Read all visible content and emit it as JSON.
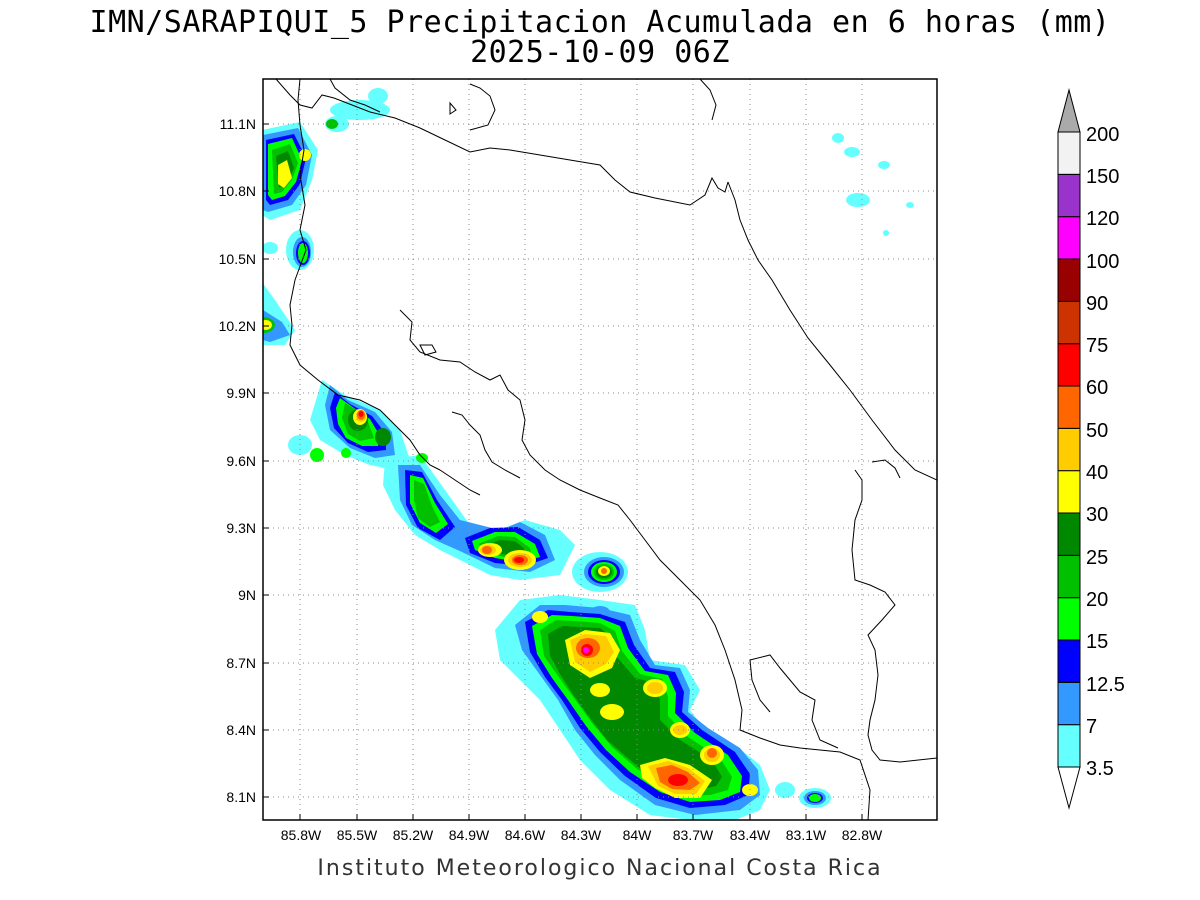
{
  "title": {
    "line1": "IMN/SARAPIQUI_5 Precipitacion Acumulada en 6 horas (mm)",
    "line2": "2025-10-09 06Z"
  },
  "map": {
    "lat_labels": [
      "11.1N",
      "10.8N",
      "10.5N",
      "10.2N",
      "9.9N",
      "9.6N",
      "9.3N",
      "9N",
      "8.7N",
      "8.4N",
      "8.1N"
    ],
    "lon_labels": [
      "85.8W",
      "85.5W",
      "85.2W",
      "84.9W",
      "84.6W",
      "84.3W",
      "84W",
      "83.7W",
      "83.4W",
      "83.1W",
      "82.8W"
    ]
  },
  "colorbar": {
    "labels": [
      "3.5",
      "7",
      "12.5",
      "15",
      "20",
      "25",
      "30",
      "40",
      "50",
      "60",
      "75",
      "90",
      "100",
      "120",
      "150",
      "200"
    ],
    "colors": [
      "#66ffff",
      "#3399ff",
      "#0000ff",
      "#00ff00",
      "#00c000",
      "#008800",
      "#ffff00",
      "#ffcc00",
      "#ff6600",
      "#ff0000",
      "#cc3300",
      "#990000",
      "#ff00ff",
      "#9933cc",
      "#f2f2f2",
      "#aaaaaa"
    ]
  },
  "footer": "Instituto Meteorologico Nacional Costa Rica"
}
